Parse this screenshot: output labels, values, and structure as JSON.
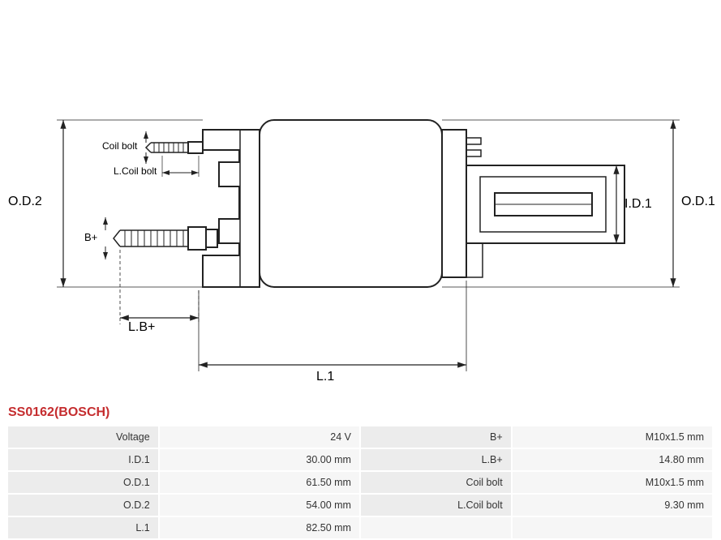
{
  "part_title": "SS0162(BOSCH)",
  "labels": {
    "od2": "O.D.2",
    "od1": "O.D.1",
    "id1": "I.D.1",
    "l1": "L.1",
    "lbplus": "L.B+",
    "bplus": "B+",
    "coil_bolt": "Coil bolt",
    "lcoil_bolt": "L.Coil bolt"
  },
  "specs": [
    {
      "label": "Voltage",
      "value": "24 V",
      "label2": "B+",
      "value2": "M10x1.5 mm"
    },
    {
      "label": "I.D.1",
      "value": "30.00 mm",
      "label2": "L.B+",
      "value2": "14.80 mm"
    },
    {
      "label": "O.D.1",
      "value": "61.50 mm",
      "label2": "Coil bolt",
      "value2": "M10x1.5 mm"
    },
    {
      "label": "O.D.2",
      "value": "54.00 mm",
      "label2": "L.Coil bolt",
      "value2": "9.30 mm"
    },
    {
      "label": "L.1",
      "value": "82.50 mm",
      "label2": "",
      "value2": ""
    }
  ],
  "style": {
    "title_color": "#c52d2f",
    "table_label_bg": "#ececec",
    "table_value_bg": "#f6f6f6",
    "diagram_stroke": "#222222",
    "diagram_stroke_width": 2,
    "dimension_stroke_width": 1.2,
    "font_family": "Arial",
    "background": "#ffffff"
  }
}
